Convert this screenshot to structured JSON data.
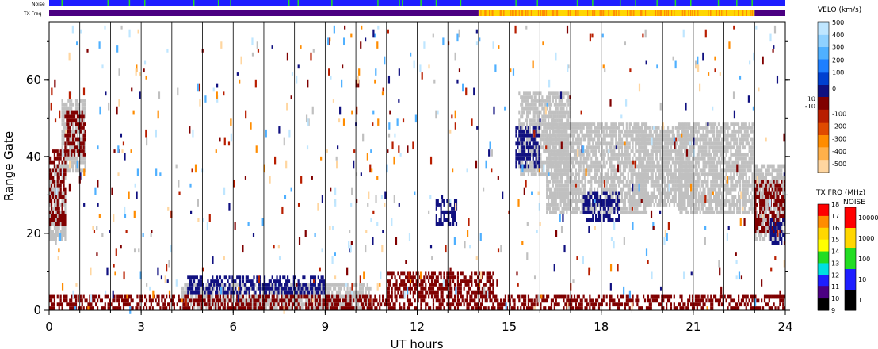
{
  "chart_data": {
    "type": "heatmap",
    "xlabel": "UT hours",
    "ylabel": "Range Gate",
    "xlim": [
      0,
      24
    ],
    "ylim": [
      0,
      75
    ],
    "x_ticks": [
      "0",
      "3",
      "6",
      "9",
      "12",
      "15",
      "18",
      "21",
      "24"
    ],
    "y_ticks": [
      "0",
      "20",
      "40",
      "60"
    ],
    "strip_labels": {
      "noise": "Noise",
      "txfreq": "TX Freq"
    },
    "txfreq_strip": [
      {
        "x0": 0,
        "x1": 14.0,
        "color": "#4b0082"
      },
      {
        "x0": 14.0,
        "x1": 23.0,
        "color": "#ffd700"
      },
      {
        "x0": 23.0,
        "x1": 24,
        "color": "#4b0082"
      }
    ],
    "noise_strip": {
      "base_color": "#1e1eff",
      "spike_color": "#22dd22",
      "spike_times": [
        0.4,
        1.9,
        2.6,
        3.1,
        4.7,
        5.5,
        5.9,
        7.8,
        8.1,
        9.2,
        10.7,
        11.4,
        11.5,
        12.1,
        12.6,
        13.4,
        15.2,
        15.9,
        17.2,
        17.7,
        18.6,
        19.1,
        19.8,
        20.4,
        20.9,
        21.8,
        22.4,
        22.9
      ]
    },
    "velocity_legend": {
      "title": "VELO (km/s)",
      "ticks": [
        "500",
        "400",
        "300",
        "200",
        "100",
        "0",
        "10",
        "-10",
        "-100",
        "-200",
        "-300",
        "-400",
        "-500"
      ],
      "colors": [
        "#bfe6ff",
        "#8fd1ff",
        "#4fb0ff",
        "#1e7fff",
        "#0040d0",
        "#101080",
        "#800000",
        "#b81e00",
        "#e04a00",
        "#ff8c00",
        "#ffb04a",
        "#ffd6a0"
      ]
    },
    "txfreq_legend": {
      "title": "TX FRQ (MHz)",
      "ticks": [
        "18",
        "17",
        "16",
        "15",
        "14",
        "13",
        "12",
        "11",
        "10",
        "9"
      ],
      "colors": [
        "#ff0000",
        "#ff8c00",
        "#ffd700",
        "#ffff00",
        "#22dd22",
        "#00e0e0",
        "#1e1eff",
        "#4b0082",
        "#000000"
      ]
    },
    "noise_legend": {
      "title": "NOISE",
      "ticks": [
        "10000",
        "1000",
        "100",
        "10",
        "1"
      ],
      "colors": [
        "#ff0000",
        "#ffd700",
        "#22dd22",
        "#1e1eff",
        "#000000"
      ]
    },
    "series": [
      {
        "color_key": "ground",
        "regions": [
          {
            "t0": 0.0,
            "t1": 0.5,
            "g0": 18,
            "g1": 38
          },
          {
            "t0": 0.4,
            "t1": 1.2,
            "g0": 36,
            "g1": 55
          },
          {
            "t0": 4.3,
            "t1": 10.5,
            "g0": 0,
            "g1": 7
          },
          {
            "t0": 15.3,
            "t1": 17.0,
            "g0": 35,
            "g1": 57
          },
          {
            "t0": 16.2,
            "t1": 19.5,
            "g0": 25,
            "g1": 49
          },
          {
            "t0": 19.2,
            "t1": 21.0,
            "g0": 27,
            "g1": 48
          },
          {
            "t0": 20.5,
            "t1": 23.0,
            "g0": 25,
            "g1": 49
          },
          {
            "t0": 23.0,
            "t1": 24.0,
            "g0": 18,
            "g1": 38
          }
        ]
      },
      {
        "color_key": "neg_strong",
        "regions": [
          {
            "t0": 0.0,
            "t1": 24.0,
            "g0": 0,
            "g1": 4
          },
          {
            "t0": 0.0,
            "t1": 0.5,
            "g0": 22,
            "g1": 42
          },
          {
            "t0": 0.5,
            "t1": 1.2,
            "g0": 40,
            "g1": 52
          },
          {
            "t0": 11.0,
            "t1": 14.5,
            "g0": 4,
            "g1": 10
          },
          {
            "t0": 23.0,
            "t1": 24.0,
            "g0": 20,
            "g1": 34
          }
        ]
      },
      {
        "color_key": "pos_strong",
        "regions": [
          {
            "t0": 12.6,
            "t1": 13.3,
            "g0": 22,
            "g1": 29
          },
          {
            "t0": 15.2,
            "t1": 16.0,
            "g0": 37,
            "g1": 48
          },
          {
            "t0": 17.4,
            "t1": 18.6,
            "g0": 23,
            "g1": 31
          },
          {
            "t0": 4.5,
            "t1": 9.0,
            "g0": 4,
            "g1": 9
          },
          {
            "t0": 23.5,
            "t1": 24.0,
            "g0": 17,
            "g1": 24
          }
        ]
      }
    ]
  }
}
